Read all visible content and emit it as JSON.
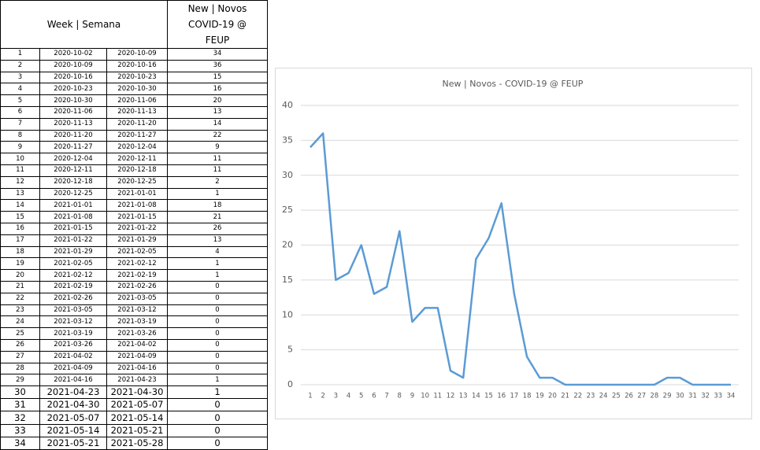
{
  "table": {
    "headers": [
      "Week | Semana",
      "New | Novos COVID-19 @ FEUP"
    ],
    "rows": [
      [
        1,
        "2020-10-02",
        "2020-10-09",
        34
      ],
      [
        2,
        "2020-10-09",
        "2020-10-16",
        36
      ],
      [
        3,
        "2020-10-16",
        "2020-10-23",
        15
      ],
      [
        4,
        "2020-10-23",
        "2020-10-30",
        16
      ],
      [
        5,
        "2020-10-30",
        "2020-11-06",
        20
      ],
      [
        6,
        "2020-11-06",
        "2020-11-13",
        13
      ],
      [
        7,
        "2020-11-13",
        "2020-11-20",
        14
      ],
      [
        8,
        "2020-11-20",
        "2020-11-27",
        22
      ],
      [
        9,
        "2020-11-27",
        "2020-12-04",
        9
      ],
      [
        10,
        "2020-12-04",
        "2020-12-11",
        11
      ],
      [
        11,
        "2020-12-11",
        "2020-12-18",
        11
      ],
      [
        12,
        "2020-12-18",
        "2020-12-25",
        2
      ],
      [
        13,
        "2020-12-25",
        "2021-01-01",
        1
      ],
      [
        14,
        "2021-01-01",
        "2021-01-08",
        18
      ],
      [
        15,
        "2021-01-08",
        "2021-01-15",
        21
      ],
      [
        16,
        "2021-01-15",
        "2021-01-22",
        26
      ],
      [
        17,
        "2021-01-22",
        "2021-01-29",
        13
      ],
      [
        18,
        "2021-01-29",
        "2021-02-05",
        4
      ],
      [
        19,
        "2021-02-05",
        "2021-02-12",
        1
      ],
      [
        20,
        "2021-02-12",
        "2021-02-19",
        1
      ],
      [
        21,
        "2021-02-19",
        "2021-02-26",
        0
      ],
      [
        22,
        "2021-02-26",
        "2021-03-05",
        0
      ],
      [
        23,
        "2021-03-05",
        "2021-03-12",
        0
      ],
      [
        24,
        "2021-03-12",
        "2021-03-19",
        0
      ],
      [
        25,
        "2021-03-19",
        "2021-03-26",
        0
      ],
      [
        26,
        "2021-03-26",
        "2021-04-02",
        0
      ],
      [
        27,
        "2021-04-02",
        "2021-04-09",
        0
      ],
      [
        28,
        "2021-04-09",
        "2021-04-16",
        0
      ],
      [
        29,
        "2021-04-16",
        "2021-04-23",
        1
      ],
      [
        30,
        "2021-04-23",
        "2021-04-30",
        1
      ],
      [
        31,
        "2021-04-30",
        "2021-05-07",
        0
      ],
      [
        32,
        "2021-05-07",
        "2021-05-14",
        0
      ],
      [
        33,
        "2021-05-14",
        "2021-05-21",
        0
      ],
      [
        34,
        "2021-05-21",
        "2021-05-28",
        0
      ]
    ]
  },
  "chart_data": {
    "type": "line",
    "title": "New | Novos - COVID-19 @ FEUP",
    "categories": [
      1,
      2,
      3,
      4,
      5,
      6,
      7,
      8,
      9,
      10,
      11,
      12,
      13,
      14,
      15,
      16,
      17,
      18,
      19,
      20,
      21,
      22,
      23,
      24,
      25,
      26,
      27,
      28,
      29,
      30,
      31,
      32,
      33,
      34
    ],
    "values": [
      34,
      36,
      15,
      16,
      20,
      13,
      14,
      22,
      9,
      11,
      11,
      2,
      1,
      18,
      21,
      26,
      13,
      4,
      1,
      1,
      0,
      0,
      0,
      0,
      0,
      0,
      0,
      0,
      1,
      1,
      0,
      0,
      0,
      0
    ],
    "color": "#5b9bd5",
    "ylim": [
      0,
      40
    ],
    "yticks": [
      0,
      5,
      10,
      15,
      20,
      25,
      30,
      35,
      40
    ],
    "grid": true
  }
}
